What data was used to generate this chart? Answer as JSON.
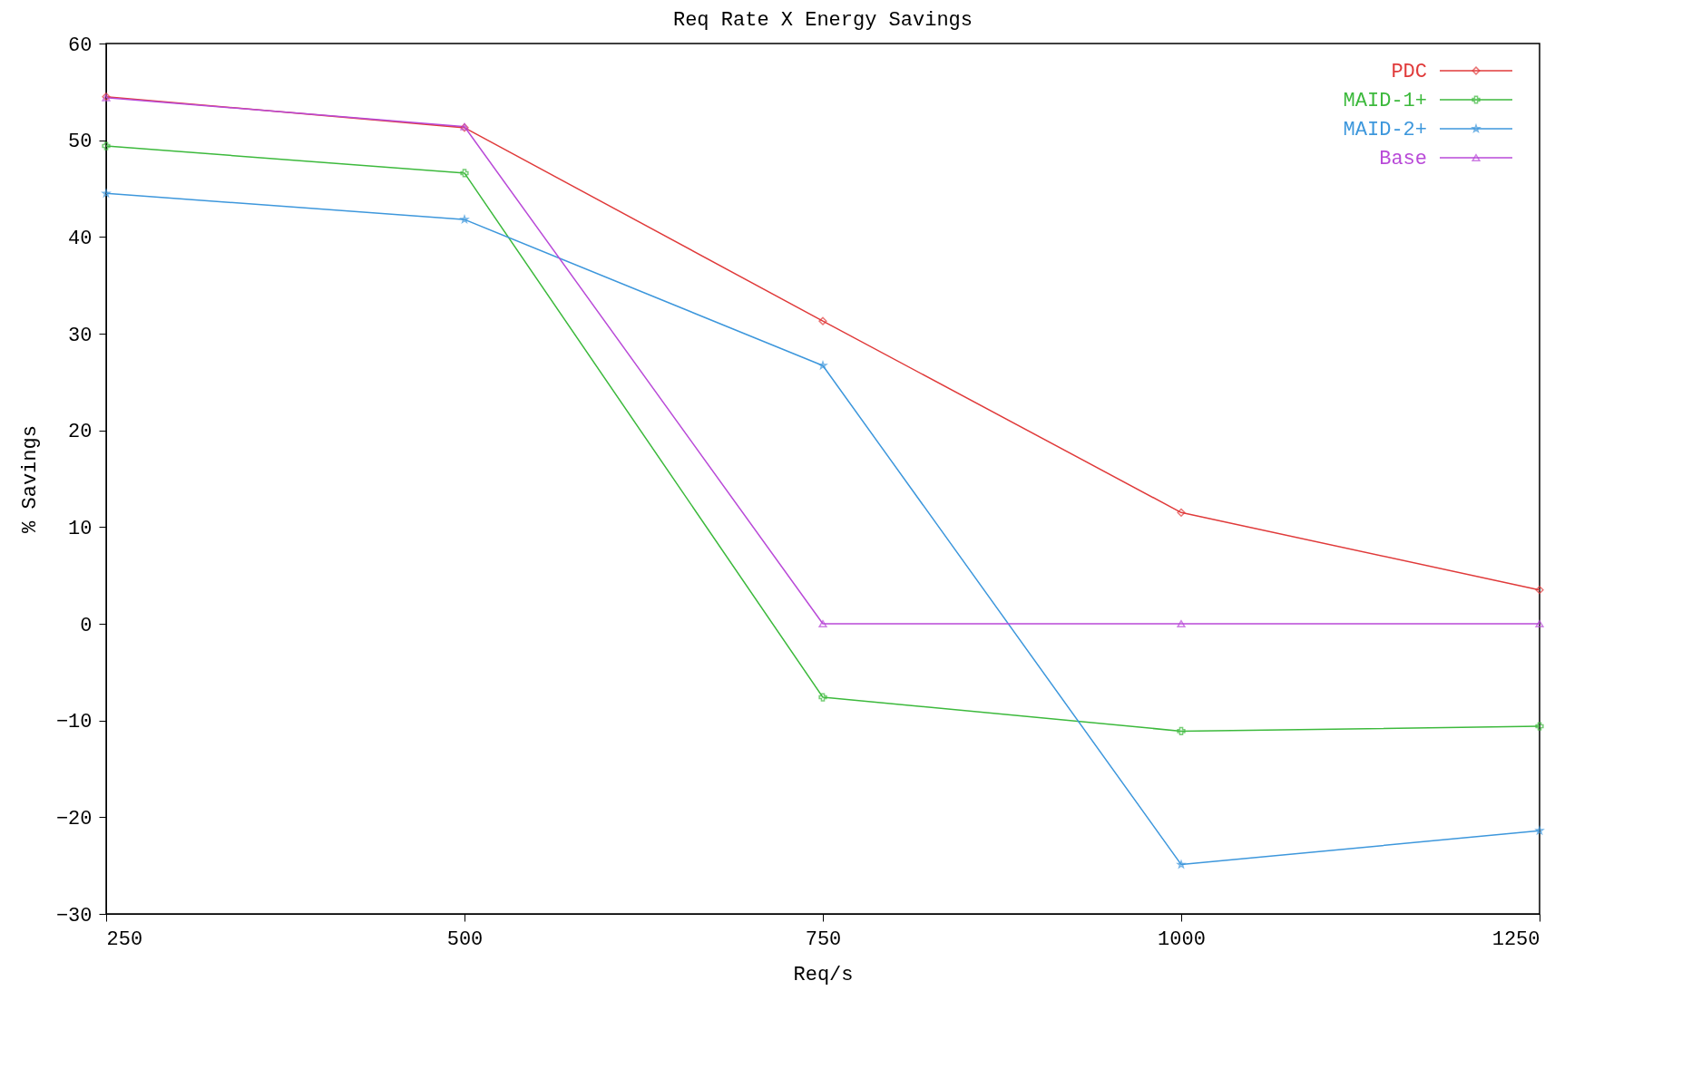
{
  "chart_data": {
    "type": "line",
    "title": "Req Rate X Energy Savings",
    "xlabel": "Req/s",
    "ylabel": "% Savings",
    "x": [
      250,
      500,
      750,
      1000,
      1250
    ],
    "series": [
      {
        "name": "PDC",
        "color": "#e03a3a",
        "marker": "diamond",
        "values": [
          54.5,
          51.3,
          31.3,
          11.5,
          3.5
        ]
      },
      {
        "name": "MAID-1+",
        "color": "#3cb93c",
        "marker": "cross",
        "values": [
          49.4,
          46.6,
          -7.6,
          -11.1,
          -10.6
        ]
      },
      {
        "name": "MAID-2+",
        "color": "#3d97dc",
        "marker": "star",
        "values": [
          44.5,
          41.8,
          26.7,
          -24.9,
          -21.4
        ]
      },
      {
        "name": "Base",
        "color": "#b94ad8",
        "marker": "triangle",
        "values": [
          54.4,
          51.4,
          0,
          0,
          0
        ]
      }
    ],
    "xlim": [
      250,
      1250
    ],
    "xticks": [
      250,
      500,
      750,
      1000,
      1250
    ],
    "ylim": [
      -30,
      60
    ],
    "yticks": [
      -30,
      -20,
      -10,
      0,
      10,
      20,
      30,
      40,
      50,
      60
    ],
    "grid": false,
    "legend": "top right",
    "line_style": "solid"
  }
}
